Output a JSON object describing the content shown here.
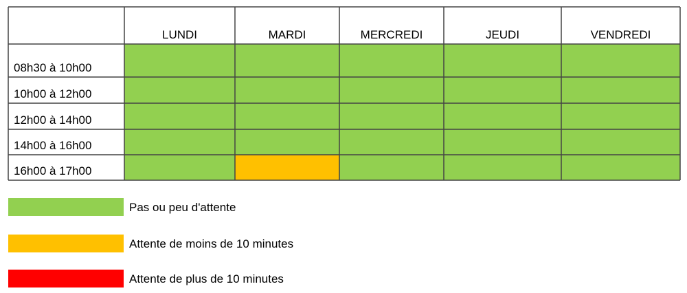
{
  "table": {
    "columns": [
      "LUNDI",
      "MARDI",
      "MERCREDI",
      "JEUDI",
      "VENDREDI"
    ],
    "rows": [
      {
        "label": "08h30 à 10h00",
        "colors": [
          "#92d050",
          "#92d050",
          "#92d050",
          "#92d050",
          "#92d050"
        ]
      },
      {
        "label": "10h00 à 12h00",
        "colors": [
          "#92d050",
          "#92d050",
          "#92d050",
          "#92d050",
          "#92d050"
        ]
      },
      {
        "label": "12h00 à 14h00",
        "colors": [
          "#92d050",
          "#92d050",
          "#92d050",
          "#92d050",
          "#92d050"
        ]
      },
      {
        "label": "14h00 à 16h00",
        "colors": [
          "#92d050",
          "#92d050",
          "#92d050",
          "#92d050",
          "#92d050"
        ]
      },
      {
        "label": "16h00 à 17h00",
        "colors": [
          "#92d050",
          "#ffc000",
          "#92d050",
          "#92d050",
          "#92d050"
        ]
      }
    ]
  },
  "legend": [
    {
      "color": "#92d050",
      "label": "Pas ou peu d'attente"
    },
    {
      "color": "#ffc000",
      "label": "Attente de moins de 10 minutes"
    },
    {
      "color": "#ff0000",
      "label": "Attente de plus de 10 minutes"
    }
  ]
}
